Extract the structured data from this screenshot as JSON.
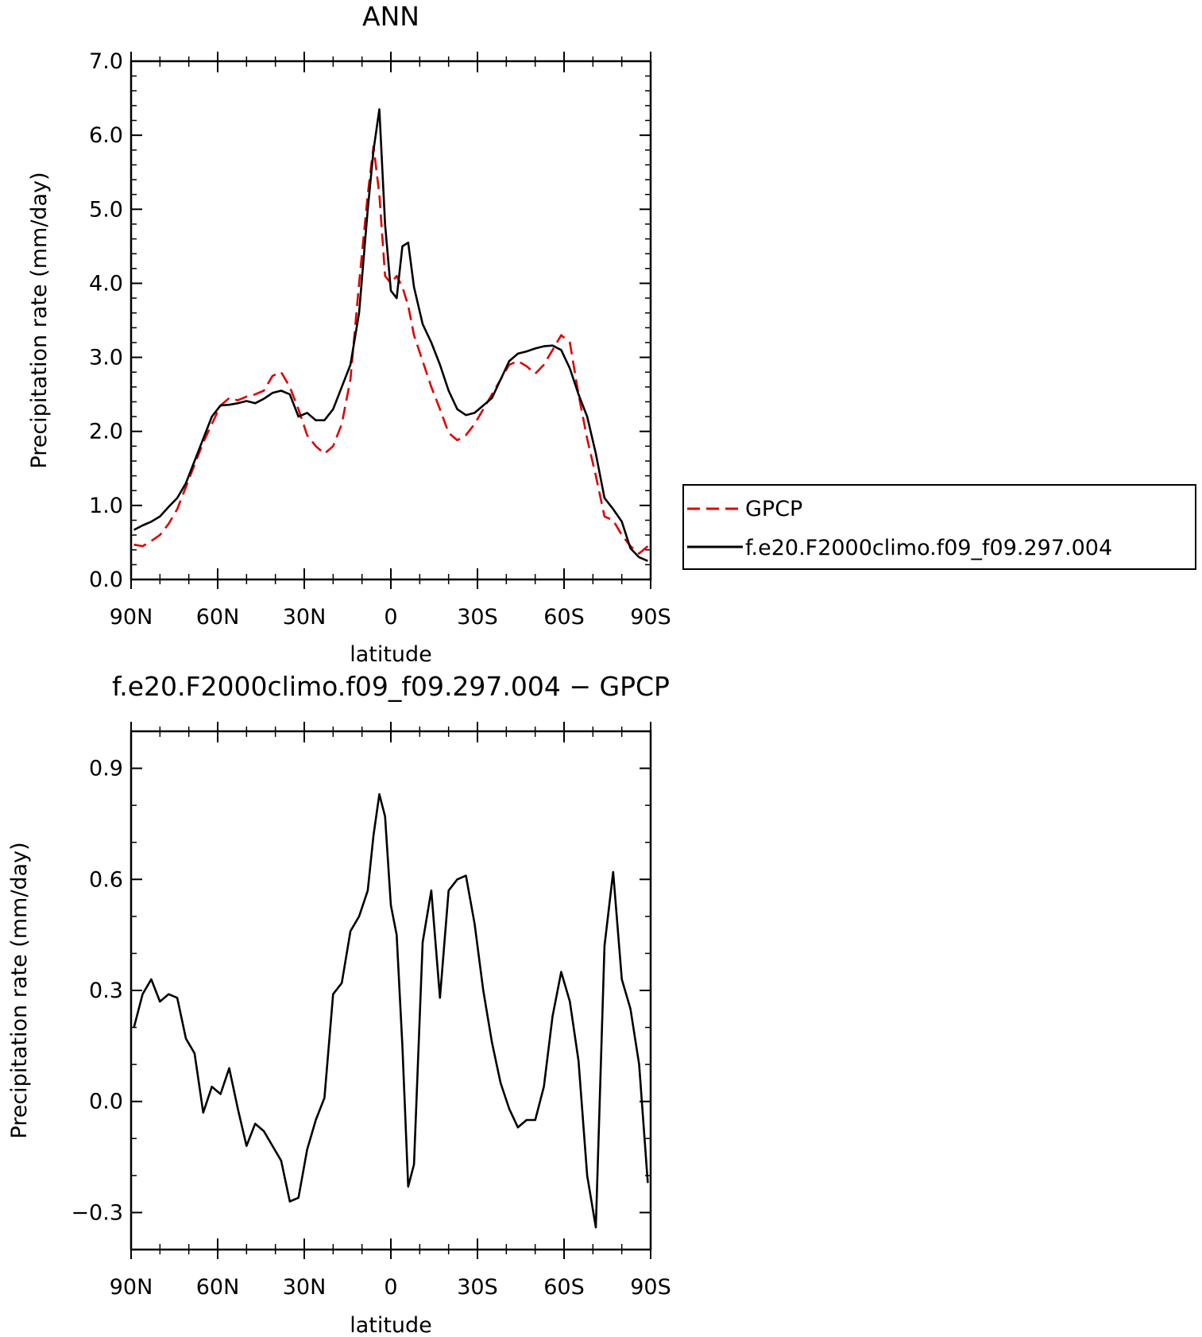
{
  "chart_data": [
    {
      "type": "line",
      "title": "ANN",
      "xlabel": "latitude",
      "ylabel": "Precipitation rate (mm/day)",
      "xlim": [
        90,
        -90
      ],
      "ylim": [
        0,
        7
      ],
      "x_ticks": [
        {
          "value": 90,
          "label": "90N"
        },
        {
          "value": 60,
          "label": "60N"
        },
        {
          "value": 30,
          "label": "30N"
        },
        {
          "value": 0,
          "label": "0"
        },
        {
          "value": -30,
          "label": "30S"
        },
        {
          "value": -60,
          "label": "60S"
        },
        {
          "value": -90,
          "label": "90S"
        }
      ],
      "y_ticks": [
        {
          "value": 0,
          "label": "0.0"
        },
        {
          "value": 1,
          "label": "1.0"
        },
        {
          "value": 2,
          "label": "2.0"
        },
        {
          "value": 3,
          "label": "3.0"
        },
        {
          "value": 4,
          "label": "4.0"
        },
        {
          "value": 5,
          "label": "5.0"
        },
        {
          "value": 6,
          "label": "6.0"
        },
        {
          "value": 7,
          "label": "7.0"
        }
      ],
      "legend": "right",
      "series": [
        {
          "name": "GPCP",
          "color": "#e00000",
          "dash": true,
          "x": [
            89,
            86,
            83,
            80,
            77,
            74,
            71,
            68,
            65,
            62,
            59,
            56,
            53,
            50,
            47,
            44,
            41,
            38,
            35,
            32,
            29,
            26,
            23,
            20,
            17,
            14,
            11,
            8,
            6,
            4,
            2,
            0,
            -2,
            -4,
            -6,
            -8,
            -11,
            -14,
            -17,
            -20,
            -23,
            -26,
            -29,
            -32,
            -35,
            -38,
            -41,
            -44,
            -47,
            -50,
            -53,
            -56,
            -59,
            -62,
            -65,
            -68,
            -71,
            -74,
            -77,
            -80,
            -83,
            -86,
            -89
          ],
          "values": [
            0.47,
            0.45,
            0.52,
            0.6,
            0.75,
            0.95,
            1.25,
            1.55,
            1.85,
            2.1,
            2.35,
            2.45,
            2.42,
            2.47,
            2.5,
            2.55,
            2.75,
            2.8,
            2.6,
            2.3,
            1.95,
            1.8,
            1.7,
            1.8,
            2.1,
            2.7,
            4.0,
            5.2,
            5.85,
            5.2,
            4.1,
            4.0,
            4.1,
            3.95,
            3.7,
            3.3,
            2.95,
            2.6,
            2.3,
            1.98,
            1.88,
            1.95,
            2.1,
            2.3,
            2.5,
            2.7,
            2.9,
            2.95,
            2.88,
            2.78,
            2.9,
            3.1,
            3.3,
            3.2,
            2.5,
            1.9,
            1.4,
            0.85,
            0.8,
            0.6,
            0.45,
            0.35,
            0.45
          ]
        },
        {
          "name": "f.e20.F2000climo.f09_f09.297.004",
          "color": "#000000",
          "dash": false,
          "x": [
            89,
            86,
            83,
            80,
            77,
            74,
            71,
            68,
            65,
            62,
            59,
            56,
            53,
            50,
            47,
            44,
            41,
            38,
            35,
            32,
            29,
            26,
            23,
            20,
            17,
            14,
            11,
            8,
            6,
            4,
            2,
            0,
            -2,
            -4,
            -6,
            -8,
            -11,
            -14,
            -17,
            -20,
            -23,
            -26,
            -29,
            -32,
            -35,
            -38,
            -41,
            -44,
            -47,
            -50,
            -53,
            -56,
            -59,
            -62,
            -65,
            -68,
            -71,
            -74,
            -77,
            -80,
            -83,
            -86,
            -89
          ],
          "values": [
            0.67,
            0.73,
            0.78,
            0.85,
            0.98,
            1.1,
            1.3,
            1.6,
            1.9,
            2.2,
            2.35,
            2.36,
            2.38,
            2.41,
            2.38,
            2.44,
            2.52,
            2.55,
            2.5,
            2.2,
            2.25,
            2.15,
            2.15,
            2.3,
            2.6,
            2.9,
            3.6,
            5.0,
            5.8,
            6.35,
            4.8,
            3.9,
            3.8,
            4.5,
            4.55,
            3.95,
            3.45,
            3.2,
            2.9,
            2.55,
            2.3,
            2.22,
            2.25,
            2.35,
            2.45,
            2.7,
            2.95,
            3.05,
            3.08,
            3.12,
            3.15,
            3.16,
            3.1,
            2.85,
            2.5,
            2.2,
            1.7,
            1.1,
            0.95,
            0.78,
            0.42,
            0.3,
            0.25
          ]
        }
      ]
    },
    {
      "type": "line",
      "title": "f.e20.F2000climo.f09_f09.297.004 − GPCP",
      "xlabel": "latitude",
      "ylabel": "Precipitation rate (mm/day)",
      "xlim": [
        90,
        -90
      ],
      "ylim": [
        -0.4,
        1.0
      ],
      "x_ticks": [
        {
          "value": 90,
          "label": "90N"
        },
        {
          "value": 60,
          "label": "60N"
        },
        {
          "value": 30,
          "label": "30N"
        },
        {
          "value": 0,
          "label": "0"
        },
        {
          "value": -30,
          "label": "30S"
        },
        {
          "value": -60,
          "label": "60S"
        },
        {
          "value": -90,
          "label": "90S"
        }
      ],
      "y_ticks": [
        {
          "value": -0.3,
          "label": "−0.3"
        },
        {
          "value": 0.0,
          "label": "0.0"
        },
        {
          "value": 0.3,
          "label": "0.3"
        },
        {
          "value": 0.6,
          "label": "0.6"
        },
        {
          "value": 0.9,
          "label": "0.9"
        }
      ],
      "series": [
        {
          "color": "#000000",
          "dash": false,
          "x": [
            89,
            86,
            83,
            80,
            77,
            74,
            71,
            68,
            65,
            62,
            59,
            56,
            53,
            50,
            47,
            44,
            41,
            38,
            35,
            32,
            29,
            26,
            23,
            20,
            17,
            14,
            11,
            8,
            6,
            4,
            2,
            0,
            -2,
            -4,
            -6,
            -8,
            -11,
            -14,
            -17,
            -20,
            -23,
            -26,
            -29,
            -32,
            -35,
            -38,
            -41,
            -44,
            -47,
            -50,
            -53,
            -56,
            -59,
            -62,
            -65,
            -68,
            -71,
            -74,
            -77,
            -80,
            -83,
            -86,
            -89
          ],
          "values": [
            0.2,
            0.29,
            0.33,
            0.27,
            0.29,
            0.28,
            0.17,
            0.13,
            -0.03,
            0.04,
            0.02,
            0.09,
            -0.02,
            -0.12,
            -0.06,
            -0.08,
            -0.12,
            -0.16,
            -0.27,
            -0.26,
            -0.13,
            -0.05,
            0.01,
            0.29,
            0.32,
            0.46,
            0.5,
            0.57,
            0.72,
            0.83,
            0.77,
            0.53,
            0.45,
            0.15,
            -0.23,
            -0.17,
            0.43,
            0.57,
            0.28,
            0.57,
            0.6,
            0.61,
            0.48,
            0.3,
            0.16,
            0.05,
            -0.02,
            -0.07,
            -0.05,
            -0.05,
            0.04,
            0.23,
            0.35,
            0.27,
            0.11,
            -0.2,
            -0.34,
            0.42,
            0.62,
            0.33,
            0.25,
            0.1,
            -0.22
          ]
        }
      ]
    }
  ]
}
